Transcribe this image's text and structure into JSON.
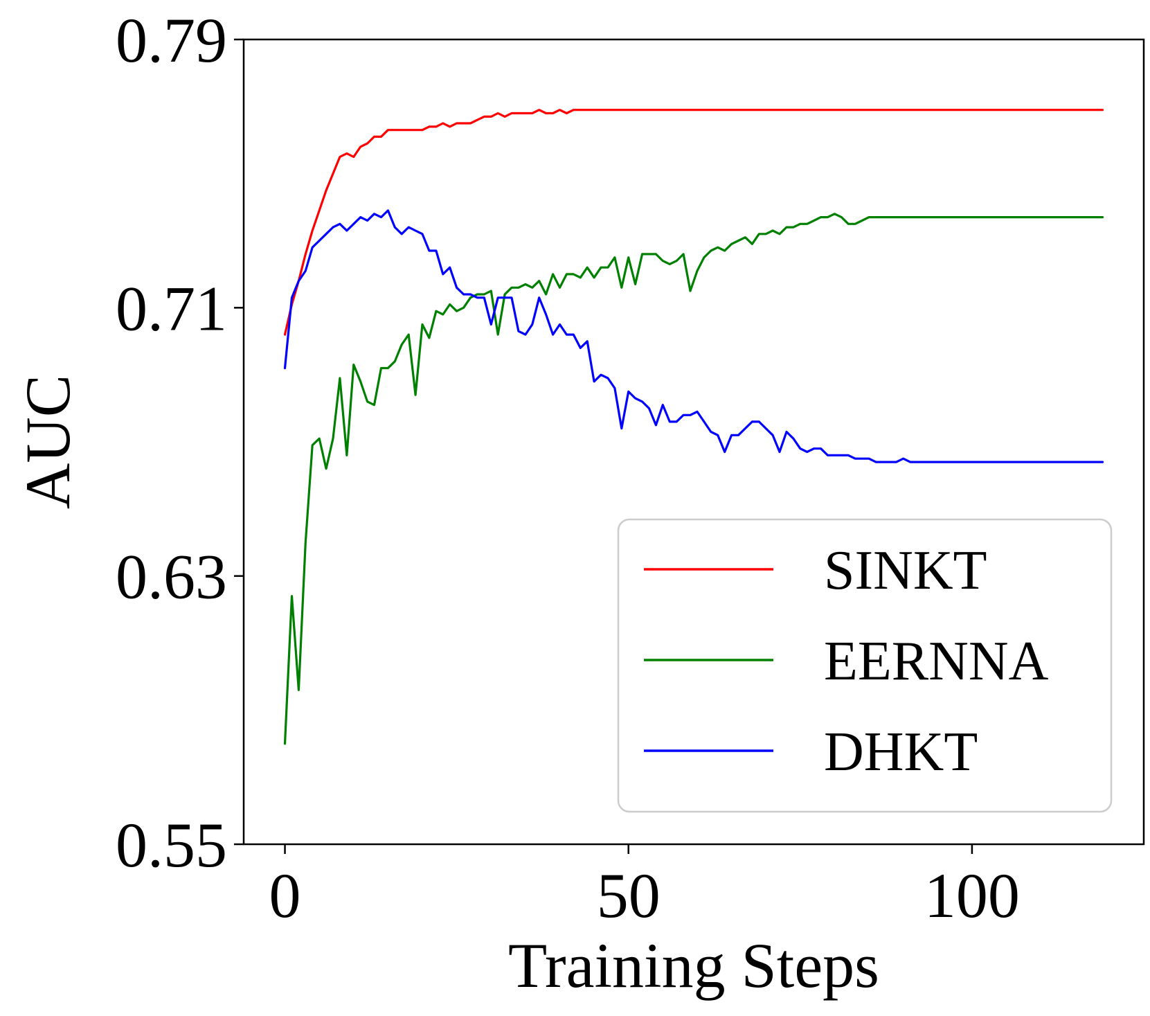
{
  "chart_data": {
    "type": "line",
    "title": "",
    "xlabel": "Training Steps",
    "ylabel": "AUC",
    "xlim": [
      -6,
      125
    ],
    "ylim": [
      0.55,
      0.79
    ],
    "xticks": [
      0,
      50,
      100
    ],
    "xtick_labels": [
      "0",
      "50",
      "100"
    ],
    "yticks": [
      0.55,
      0.63,
      0.71,
      0.79
    ],
    "ytick_labels": [
      "0.55",
      "0.63",
      "0.71",
      "0.79"
    ],
    "grid": false,
    "legend_position": "lower-right",
    "x": [
      0,
      1,
      2,
      3,
      4,
      5,
      6,
      7,
      8,
      9,
      10,
      11,
      12,
      13,
      14,
      15,
      16,
      17,
      18,
      19,
      20,
      21,
      22,
      23,
      24,
      25,
      26,
      27,
      28,
      29,
      30,
      31,
      32,
      33,
      34,
      35,
      36,
      37,
      38,
      39,
      40,
      41,
      42,
      43,
      44,
      45,
      46,
      47,
      48,
      49,
      50,
      51,
      52,
      53,
      54,
      55,
      56,
      57,
      58,
      59,
      60,
      61,
      62,
      63,
      64,
      65,
      66,
      67,
      68,
      69,
      70,
      71,
      72,
      73,
      74,
      75,
      76,
      77,
      78,
      79,
      80,
      81,
      82,
      83,
      84,
      85,
      86,
      87,
      88,
      89,
      90,
      91,
      92,
      93,
      94,
      95,
      96,
      97,
      98,
      99,
      100,
      101,
      102,
      103,
      104,
      105,
      106,
      107,
      108,
      109,
      110,
      111,
      112,
      113,
      114,
      115,
      116,
      117,
      118,
      119
    ],
    "series": [
      {
        "name": "SINKT",
        "color": "#ff0000",
        "values": [
          0.702,
          0.711,
          0.718,
          0.726,
          0.733,
          0.739,
          0.745,
          0.75,
          0.755,
          0.756,
          0.755,
          0.758,
          0.759,
          0.761,
          0.761,
          0.763,
          0.763,
          0.763,
          0.763,
          0.763,
          0.763,
          0.764,
          0.764,
          0.765,
          0.764,
          0.765,
          0.765,
          0.765,
          0.766,
          0.767,
          0.767,
          0.768,
          0.767,
          0.768,
          0.768,
          0.768,
          0.768,
          0.769,
          0.768,
          0.768,
          0.769,
          0.768,
          0.769,
          0.769,
          0.769,
          0.769,
          0.769,
          0.769,
          0.769,
          0.769,
          0.769,
          0.769,
          0.769,
          0.769,
          0.769,
          0.769,
          0.769,
          0.769,
          0.769,
          0.769,
          0.769,
          0.769,
          0.769,
          0.769,
          0.769,
          0.769,
          0.769,
          0.769,
          0.769,
          0.769,
          0.769,
          0.769,
          0.769,
          0.769,
          0.769,
          0.769,
          0.769,
          0.769,
          0.769,
          0.769,
          0.769,
          0.769,
          0.769,
          0.769,
          0.769,
          0.769,
          0.769,
          0.769,
          0.769,
          0.769,
          0.769,
          0.769,
          0.769,
          0.769,
          0.769,
          0.769,
          0.769,
          0.769,
          0.769,
          0.769,
          0.769,
          0.769,
          0.769,
          0.769,
          0.769,
          0.769,
          0.769,
          0.769,
          0.769,
          0.769,
          0.769,
          0.769,
          0.769,
          0.769,
          0.769,
          0.769,
          0.769,
          0.769,
          0.769,
          0.769
        ]
      },
      {
        "name": "EERNNA",
        "color": "#008000",
        "values": [
          0.58,
          0.624,
          0.596,
          0.64,
          0.669,
          0.671,
          0.662,
          0.671,
          0.689,
          0.666,
          0.693,
          0.688,
          0.682,
          0.681,
          0.692,
          0.692,
          0.694,
          0.699,
          0.702,
          0.684,
          0.705,
          0.701,
          0.709,
          0.708,
          0.711,
          0.709,
          0.71,
          0.713,
          0.714,
          0.714,
          0.715,
          0.702,
          0.714,
          0.716,
          0.716,
          0.717,
          0.716,
          0.718,
          0.714,
          0.72,
          0.716,
          0.72,
          0.72,
          0.719,
          0.722,
          0.719,
          0.722,
          0.722,
          0.725,
          0.716,
          0.725,
          0.717,
          0.726,
          0.726,
          0.726,
          0.724,
          0.723,
          0.724,
          0.726,
          0.715,
          0.721,
          0.725,
          0.727,
          0.728,
          0.727,
          0.729,
          0.73,
          0.731,
          0.729,
          0.732,
          0.732,
          0.733,
          0.732,
          0.734,
          0.734,
          0.735,
          0.735,
          0.736,
          0.737,
          0.737,
          0.738,
          0.737,
          0.735,
          0.735,
          0.736,
          0.737,
          0.737,
          0.737,
          0.737,
          0.737,
          0.737,
          0.737,
          0.737,
          0.737,
          0.737,
          0.737,
          0.737,
          0.737,
          0.737,
          0.737,
          0.737,
          0.737,
          0.737,
          0.737,
          0.737,
          0.737,
          0.737,
          0.737,
          0.737,
          0.737,
          0.737,
          0.737,
          0.737,
          0.737,
          0.737,
          0.737,
          0.737,
          0.737,
          0.737,
          0.737
        ]
      },
      {
        "name": "DHKT",
        "color": "#0000ff",
        "values": [
          0.692,
          0.713,
          0.718,
          0.721,
          0.728,
          0.73,
          0.732,
          0.734,
          0.735,
          0.733,
          0.735,
          0.737,
          0.736,
          0.738,
          0.737,
          0.739,
          0.734,
          0.732,
          0.734,
          0.733,
          0.732,
          0.727,
          0.727,
          0.72,
          0.722,
          0.716,
          0.714,
          0.714,
          0.713,
          0.713,
          0.705,
          0.713,
          0.713,
          0.713,
          0.703,
          0.702,
          0.705,
          0.713,
          0.708,
          0.702,
          0.705,
          0.702,
          0.702,
          0.698,
          0.7,
          0.688,
          0.69,
          0.689,
          0.686,
          0.674,
          0.685,
          0.683,
          0.682,
          0.68,
          0.675,
          0.681,
          0.676,
          0.676,
          0.678,
          0.678,
          0.679,
          0.676,
          0.673,
          0.672,
          0.667,
          0.672,
          0.672,
          0.674,
          0.676,
          0.676,
          0.674,
          0.672,
          0.667,
          0.673,
          0.671,
          0.668,
          0.667,
          0.668,
          0.668,
          0.666,
          0.666,
          0.666,
          0.666,
          0.665,
          0.665,
          0.665,
          0.664,
          0.664,
          0.664,
          0.664,
          0.665,
          0.664,
          0.664,
          0.664,
          0.664,
          0.664,
          0.664,
          0.664,
          0.664,
          0.664,
          0.664,
          0.664,
          0.664,
          0.664,
          0.664,
          0.664,
          0.664,
          0.664,
          0.664,
          0.664,
          0.664,
          0.664,
          0.664,
          0.664,
          0.664,
          0.664,
          0.664,
          0.664,
          0.664,
          0.664
        ]
      }
    ]
  }
}
